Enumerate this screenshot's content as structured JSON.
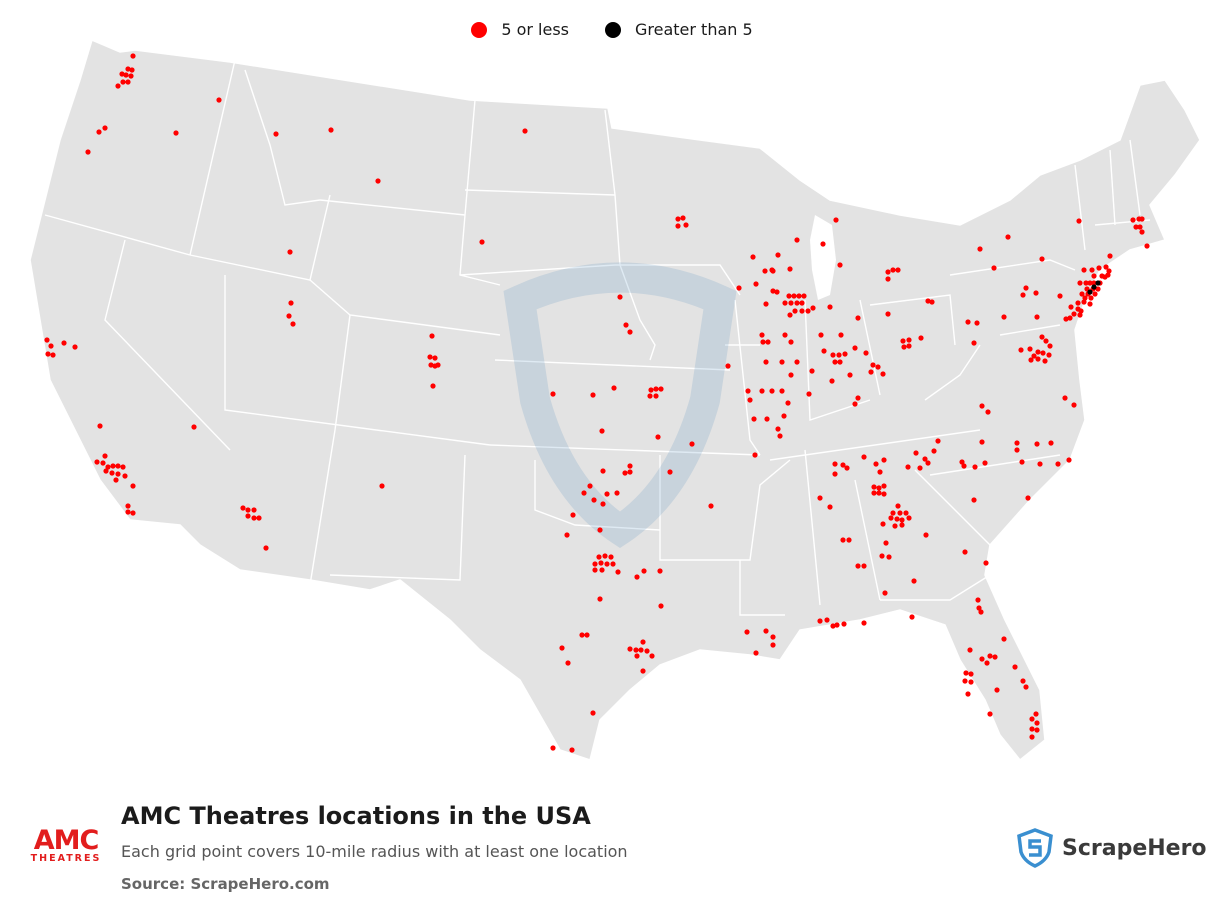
{
  "legend": [
    {
      "label": "5 or less",
      "color": "#ff0000"
    },
    {
      "label": "Greater than 5",
      "color": "#000000"
    }
  ],
  "title": "AMC Theatres locations in the USA",
  "subtitle": "Each grid point covers 10-mile radius with at least one location",
  "source": "Source: ScrapeHero.com",
  "brand_logo": {
    "word": "AMC",
    "sub": "THEATRES",
    "color": "#e21d1d"
  },
  "publisher_logo": {
    "name": "ScrapeHero",
    "icon": "shield-s-icon",
    "color": "#3a8fd0"
  },
  "map": {
    "land_color": "#e3e3e3",
    "border_color": "#ffffff",
    "watermark": "scrapehero-shield-watermark"
  }
}
